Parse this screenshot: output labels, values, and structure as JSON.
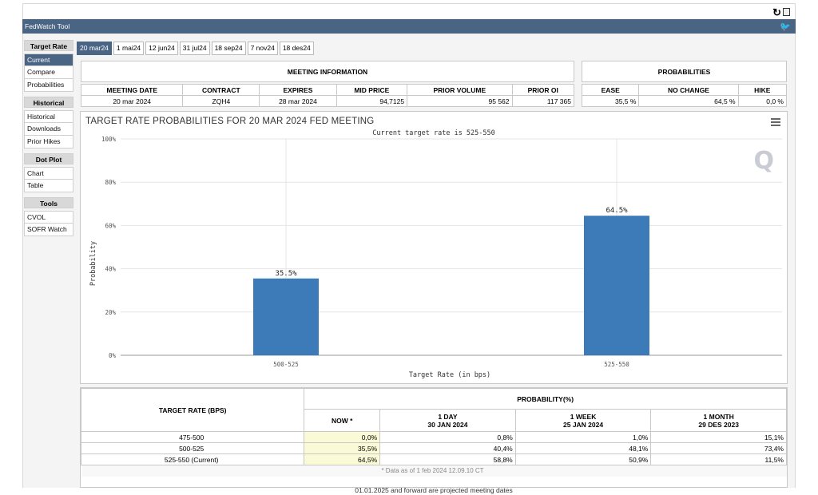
{
  "window": {
    "title": "FedWatch Tool",
    "icons": [
      "reload-icon",
      "popout-icon",
      "twitter-bird-icon"
    ]
  },
  "sidebar": {
    "groups": [
      {
        "heading": "Target Rate",
        "items": [
          "Current",
          "Compare",
          "Probabilities"
        ],
        "active": "Current"
      },
      {
        "heading": "Historical",
        "items": [
          "Historical",
          "Downloads",
          "Prior Hikes"
        ]
      },
      {
        "heading": "Dot Plot",
        "items": [
          "Chart",
          "Table"
        ]
      },
      {
        "heading": "Tools",
        "items": [
          "CVOL",
          "SOFR Watch"
        ]
      }
    ]
  },
  "tabs": [
    "20 mar24",
    "1 mai24",
    "12 jun24",
    "31 jul24",
    "18 sep24",
    "7 nov24",
    "18 des24"
  ],
  "active_tab": "20 mar24",
  "meeting_info": {
    "title": "MEETING INFORMATION",
    "headers": [
      "MEETING DATE",
      "CONTRACT",
      "EXPIRES",
      "MID PRICE",
      "PRIOR VOLUME",
      "PRIOR OI"
    ],
    "values": [
      "20 mar 2024",
      "ZQH4",
      "28 mar 2024",
      "94,7125",
      "95 562",
      "117 365"
    ]
  },
  "probabilities": {
    "title": "PROBABILITIES",
    "headers": [
      "EASE",
      "NO CHANGE",
      "HIKE"
    ],
    "values": [
      "35,5 %",
      "64,5 %",
      "0,0 %"
    ]
  },
  "chart": {
    "title": "TARGET RATE PROBABILITIES FOR 20 MAR 2024 FED MEETING",
    "subtitle": "Current target rate is 525-550",
    "bar_color": "#3d7ab8",
    "watermark": "Q"
  },
  "chart_data": {
    "type": "bar",
    "title": "TARGET RATE PROBABILITIES FOR 20 MAR 2024 FED MEETING",
    "subtitle": "Current target rate is 525-550",
    "categories": [
      "500-525",
      "525-550"
    ],
    "values": [
      35.5,
      64.5
    ],
    "data_labels": [
      "35.5%",
      "64.5%"
    ],
    "xlabel": "Target Rate (in bps)",
    "ylabel": "Probability",
    "ylim": [
      0,
      100
    ],
    "yticks": [
      "0%",
      "20%",
      "40%",
      "60%",
      "80%",
      "100%"
    ],
    "grid": true,
    "legend": "none"
  },
  "bottom_table": {
    "col0_header": "TARGET RATE (BPS)",
    "group_header": "PROBABILITY(%)",
    "columns": [
      {
        "line1": "NOW *",
        "line2": ""
      },
      {
        "line1": "1 DAY",
        "line2": "30 JAN 2024"
      },
      {
        "line1": "1 WEEK",
        "line2": "25 JAN 2024"
      },
      {
        "line1": "1 MONTH",
        "line2": "29 DES 2023"
      }
    ],
    "rows": [
      {
        "rate": "475-500",
        "values": [
          "0,0%",
          "0,8%",
          "1,0%",
          "15,1%"
        ]
      },
      {
        "rate": "500-525",
        "values": [
          "35,5%",
          "40,4%",
          "48,1%",
          "73,4%"
        ]
      },
      {
        "rate": "525-550 (Current)",
        "values": [
          "64,5%",
          "58,8%",
          "50,9%",
          "11,5%"
        ]
      }
    ],
    "note": "* Data as of 1 feb 2024 12.09.10 CT",
    "footer_cut": "01.01.2025 and forward are projected meeting dates"
  }
}
